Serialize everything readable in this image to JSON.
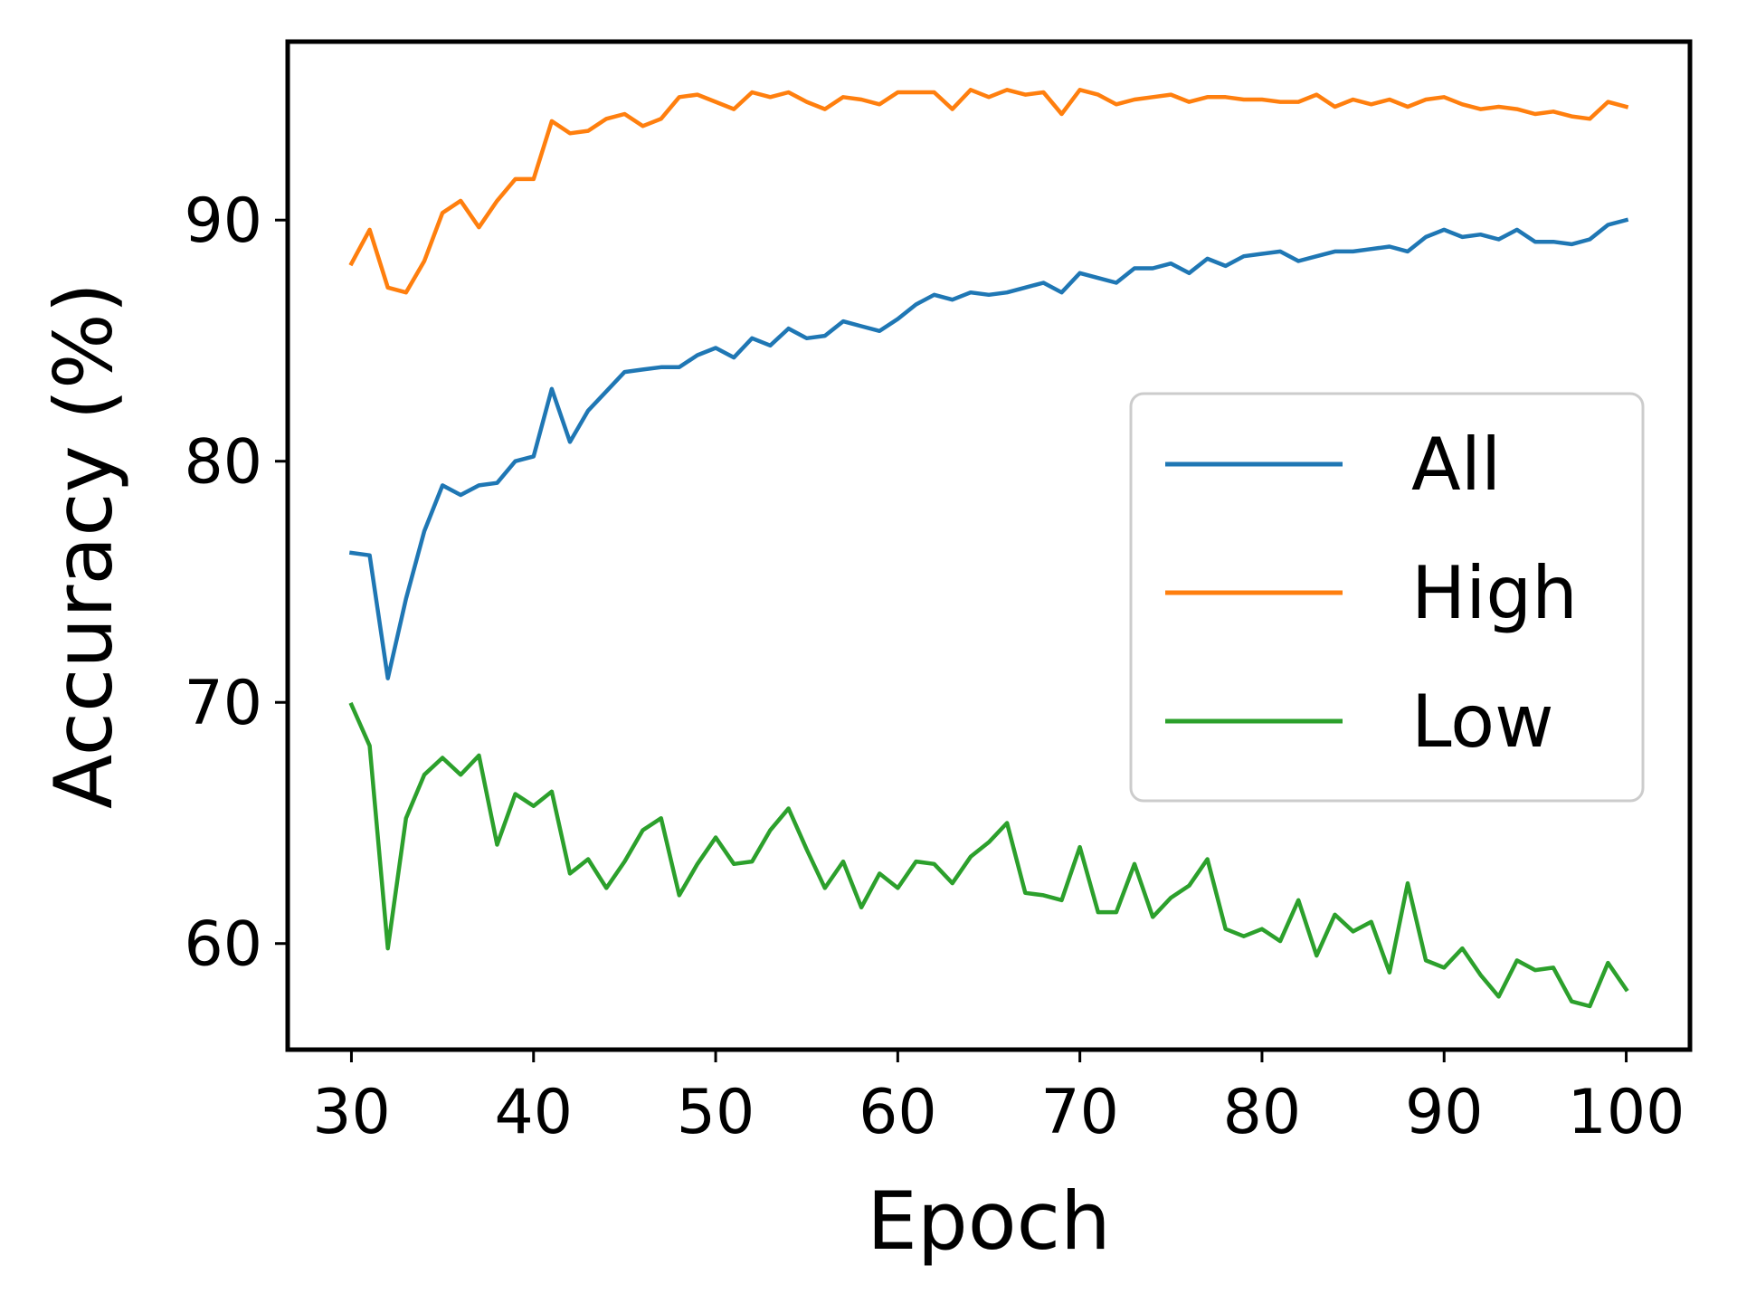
{
  "chart_data": {
    "type": "line",
    "title": "",
    "xlabel": "Epoch",
    "ylabel": "Accuracy (%)",
    "xlim": [
      26.5,
      103.5
    ],
    "ylim": [
      55.6,
      97.4
    ],
    "xticks": [
      30,
      40,
      50,
      60,
      70,
      80,
      90,
      100
    ],
    "yticks": [
      60,
      70,
      80,
      90
    ],
    "grid": false,
    "legend_position": "center-right",
    "x": [
      30,
      31,
      32,
      33,
      34,
      35,
      36,
      37,
      38,
      39,
      40,
      41,
      42,
      43,
      44,
      45,
      46,
      47,
      48,
      49,
      50,
      51,
      52,
      53,
      54,
      55,
      56,
      57,
      58,
      59,
      60,
      61,
      62,
      63,
      64,
      65,
      66,
      67,
      68,
      69,
      70,
      71,
      72,
      73,
      74,
      75,
      76,
      77,
      78,
      79,
      80,
      81,
      82,
      83,
      84,
      85,
      86,
      87,
      88,
      89,
      90,
      91,
      92,
      93,
      94,
      95,
      96,
      97,
      98,
      99,
      100
    ],
    "series": [
      {
        "name": "All",
        "color": "#1f77b4",
        "values": [
          76.2,
          76.1,
          71.0,
          74.3,
          77.1,
          79.0,
          78.6,
          79.0,
          79.1,
          80.0,
          80.2,
          83.0,
          80.8,
          82.1,
          82.9,
          83.7,
          83.8,
          83.9,
          83.9,
          84.4,
          84.7,
          84.3,
          85.1,
          84.8,
          85.5,
          85.1,
          85.2,
          85.8,
          85.6,
          85.4,
          85.9,
          86.5,
          86.9,
          86.7,
          87.0,
          86.9,
          87.0,
          87.2,
          87.4,
          87.0,
          87.8,
          87.6,
          87.4,
          88.0,
          88.0,
          88.2,
          87.8,
          88.4,
          88.1,
          88.5,
          88.6,
          88.7,
          88.3,
          88.5,
          88.7,
          88.7,
          88.8,
          88.9,
          88.7,
          89.3,
          89.6,
          89.3,
          89.4,
          89.2,
          89.6,
          89.1,
          89.1,
          89.0,
          89.2,
          89.8,
          90.0
        ]
      },
      {
        "name": "High",
        "color": "#ff7f0e",
        "values": [
          88.2,
          89.6,
          87.2,
          87.0,
          88.3,
          90.3,
          90.8,
          89.7,
          90.8,
          91.7,
          91.7,
          94.1,
          93.6,
          93.7,
          94.2,
          94.4,
          93.9,
          94.2,
          95.1,
          95.2,
          94.9,
          94.6,
          95.3,
          95.1,
          95.3,
          94.9,
          94.6,
          95.1,
          95.0,
          94.8,
          95.3,
          95.3,
          95.3,
          94.6,
          95.4,
          95.1,
          95.4,
          95.2,
          95.3,
          94.4,
          95.4,
          95.2,
          94.8,
          95.0,
          95.1,
          95.2,
          94.9,
          95.1,
          95.1,
          95.0,
          95.0,
          94.9,
          94.9,
          95.2,
          94.7,
          95.0,
          94.8,
          95.0,
          94.7,
          95.0,
          95.1,
          94.8,
          94.6,
          94.7,
          94.6,
          94.4,
          94.5,
          94.3,
          94.2,
          94.9,
          94.7
        ]
      },
      {
        "name": "Low",
        "color": "#2ca02c",
        "values": [
          69.9,
          68.2,
          59.8,
          65.2,
          67.0,
          67.7,
          67.0,
          67.8,
          64.1,
          66.2,
          65.7,
          66.3,
          62.9,
          63.5,
          62.3,
          63.4,
          64.7,
          65.2,
          62.0,
          63.3,
          64.4,
          63.3,
          63.4,
          64.7,
          65.6,
          63.9,
          62.3,
          63.4,
          61.5,
          62.9,
          62.3,
          63.4,
          63.3,
          62.5,
          63.6,
          64.2,
          65.0,
          62.1,
          62.0,
          61.8,
          64.0,
          61.3,
          61.3,
          63.3,
          61.1,
          61.9,
          62.4,
          63.5,
          60.6,
          60.3,
          60.6,
          60.1,
          61.8,
          59.5,
          61.2,
          60.5,
          60.9,
          58.8,
          62.5,
          59.3,
          59.0,
          59.8,
          58.7,
          57.8,
          59.3,
          58.9,
          59.0,
          57.6,
          57.4,
          59.2,
          58.1
        ]
      }
    ]
  }
}
